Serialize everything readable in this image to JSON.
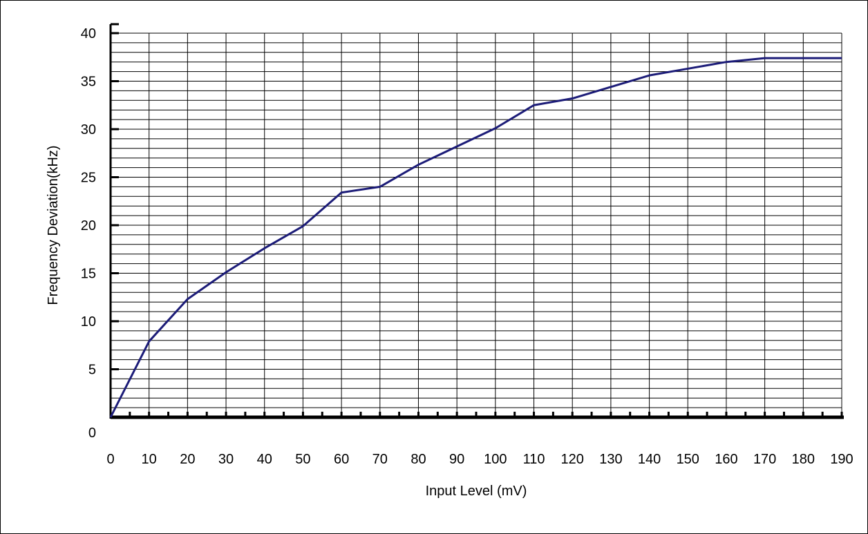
{
  "chart_data": {
    "type": "line",
    "xlabel": "Input Level (mV)",
    "ylabel": "Frequency Deviation(kHz)",
    "xlim": [
      0,
      190
    ],
    "ylim": [
      0,
      40
    ],
    "x_ticks": [
      "0",
      "10",
      "20",
      "30",
      "40",
      "50",
      "60",
      "70",
      "80",
      "90",
      "100",
      "110",
      "120",
      "130",
      "140",
      "150",
      "160",
      "170",
      "180",
      "190"
    ],
    "y_ticks": [
      "0",
      "5",
      "10",
      "15",
      "20",
      "25",
      "30",
      "35",
      "40"
    ],
    "grid": true,
    "legend": "none",
    "line_color": "#1c1c78",
    "series": [
      {
        "x": [
          0,
          10,
          20,
          30,
          40,
          50,
          60,
          70,
          80,
          90,
          100,
          110,
          120,
          130,
          140,
          150,
          160,
          170,
          180,
          190
        ],
        "values": [
          0,
          7.9,
          12.3,
          15.1,
          17.6,
          19.9,
          23.4,
          24.0,
          26.3,
          28.2,
          30.1,
          32.5,
          33.2,
          34.4,
          35.6,
          36.3,
          37.0,
          37.4,
          37.4,
          37.4
        ]
      }
    ]
  }
}
